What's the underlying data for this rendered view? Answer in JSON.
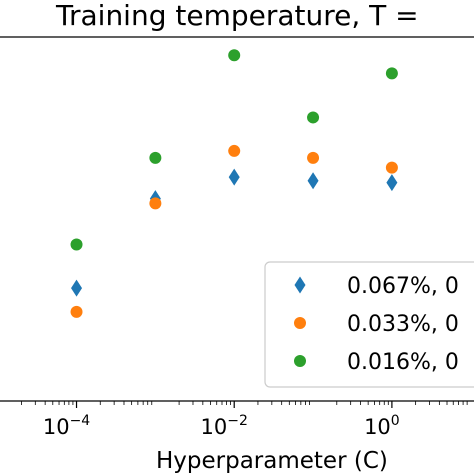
{
  "chart_data": {
    "type": "scatter",
    "title": "Training temperature, T =",
    "xlabel": "Hyperparameter (C)",
    "ylabel": "",
    "xscale": "log",
    "xlim": [
      1.07e-05,
      11.0
    ],
    "ylim": [
      0.0,
      1.0
    ],
    "grid": false,
    "legend_position": "lower-right",
    "x_ticks": [
      {
        "value": 0.0001,
        "base": "10",
        "exp": "−4"
      },
      {
        "value": 0.01,
        "base": "10",
        "exp": "−2"
      },
      {
        "value": 1,
        "base": "10",
        "exp": "0"
      }
    ],
    "x": [
      0.0001,
      0.001,
      0.01,
      0.1,
      1
    ],
    "series": [
      {
        "name": "0.067%, 0",
        "marker": "diamond",
        "color": "#1f77b4",
        "values": [
          0.31,
          0.556,
          0.615,
          0.605,
          0.6
        ]
      },
      {
        "name": "0.033%, 0",
        "marker": "circle",
        "color": "#ff7f0e",
        "values": [
          0.245,
          0.543,
          0.687,
          0.668,
          0.641
        ]
      },
      {
        "name": "0.016%, 0",
        "marker": "circle",
        "color": "#2ca02c",
        "values": [
          0.43,
          0.668,
          0.95,
          0.779,
          0.9
        ]
      }
    ]
  }
}
